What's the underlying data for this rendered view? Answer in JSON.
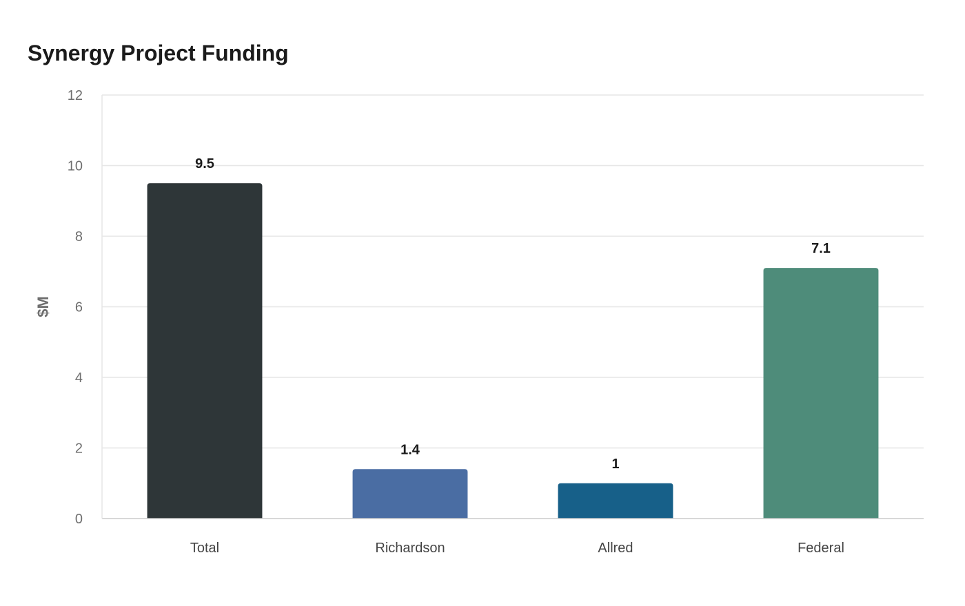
{
  "chart_data": {
    "type": "bar",
    "title": "Synergy Project Funding",
    "xlabel": "",
    "ylabel": "$M",
    "categories": [
      "Total",
      "Richardson",
      "Allred",
      "Federal"
    ],
    "values": [
      9.5,
      1.4,
      1,
      7.1
    ],
    "value_labels": [
      "9.5",
      "1.4",
      "1",
      "7.1"
    ],
    "colors": [
      "#2e3638",
      "#4a6da3",
      "#176089",
      "#4e8c7a"
    ],
    "ylim": [
      0,
      12
    ],
    "yticks": [
      0,
      2,
      4,
      6,
      8,
      10,
      12
    ],
    "grid": true,
    "legend": "none"
  }
}
